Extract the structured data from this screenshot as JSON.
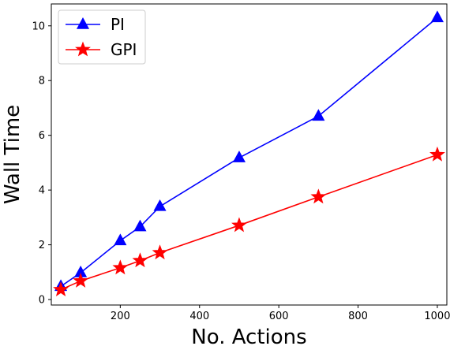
{
  "chart_data": {
    "type": "line",
    "title": "",
    "xlabel": "No. Actions",
    "ylabel": "Wall Time",
    "xlim": [
      26,
      1024
    ],
    "ylim": [
      -0.2,
      10.8
    ],
    "xticks": [
      200,
      400,
      600,
      800,
      1000
    ],
    "yticks": [
      0,
      2,
      4,
      6,
      8,
      10
    ],
    "grid": false,
    "legend_position": "top-left",
    "series": [
      {
        "name": "PI",
        "color": "#0000ff",
        "marker": "triangle",
        "x": [
          50,
          100,
          200,
          250,
          300,
          500,
          700,
          1000
        ],
        "y": [
          0.48,
          0.98,
          2.15,
          2.66,
          3.4,
          5.18,
          6.7,
          10.3
        ]
      },
      {
        "name": "GPI",
        "color": "#ff0000",
        "marker": "star",
        "x": [
          50,
          100,
          200,
          250,
          300,
          500,
          700,
          1000
        ],
        "y": [
          0.36,
          0.68,
          1.16,
          1.42,
          1.71,
          2.71,
          3.75,
          5.29
        ]
      }
    ]
  }
}
